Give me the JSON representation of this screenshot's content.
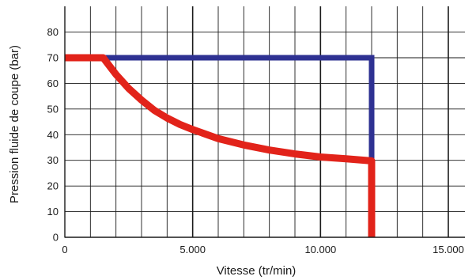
{
  "chart_data": {
    "type": "line",
    "title": "",
    "xlabel": "Vitesse (tr/min)",
    "ylabel": "Pression fluide de coupe (bar)",
    "xlim": [
      0,
      15000
    ],
    "ylim": [
      0,
      80
    ],
    "x_ticks": [
      {
        "value": 0,
        "label": "0"
      },
      {
        "value": 5000,
        "label": "5.000"
      },
      {
        "value": 10000,
        "label": "10.000"
      },
      {
        "value": 15000,
        "label": "15.000"
      }
    ],
    "y_ticks": [
      {
        "value": 0,
        "label": "0"
      },
      {
        "value": 10,
        "label": "10"
      },
      {
        "value": 20,
        "label": "20"
      },
      {
        "value": 30,
        "label": "30"
      },
      {
        "value": 40,
        "label": "40"
      },
      {
        "value": 50,
        "label": "50"
      },
      {
        "value": 60,
        "label": "60"
      },
      {
        "value": 70,
        "label": "70"
      },
      {
        "value": 80,
        "label": "80"
      }
    ],
    "grid": true,
    "series": [
      {
        "color": "#2e3192",
        "points": [
          [
            0,
            70
          ],
          [
            12000,
            70
          ],
          [
            12000,
            30
          ]
        ]
      },
      {
        "color": "#e2231a",
        "points": [
          [
            0,
            70
          ],
          [
            1500,
            70
          ],
          [
            2000,
            63.5
          ],
          [
            2500,
            58
          ],
          [
            3000,
            53.5
          ],
          [
            3500,
            49.5
          ],
          [
            4000,
            46.5
          ],
          [
            4500,
            44
          ],
          [
            5000,
            42
          ],
          [
            6000,
            38.5
          ],
          [
            7000,
            36
          ],
          [
            8000,
            34
          ],
          [
            9000,
            32.5
          ],
          [
            10000,
            31.3
          ],
          [
            11000,
            30.6
          ],
          [
            12000,
            29.8
          ],
          [
            12000,
            0
          ]
        ]
      }
    ]
  }
}
